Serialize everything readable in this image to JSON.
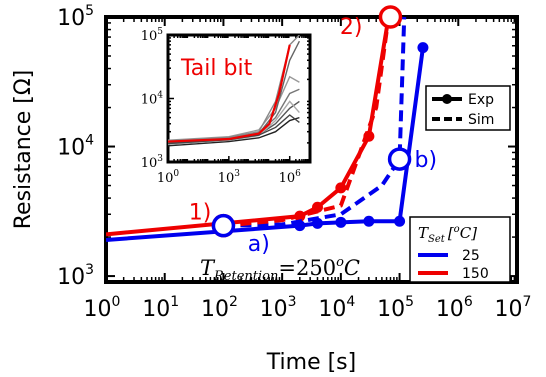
{
  "chart_data": [
    {
      "type": "line",
      "xlabel": "Time [s]",
      "ylabel": "Resistance [Ω]",
      "xscale": "log",
      "yscale": "log",
      "xlim": [
        1,
        10000000
      ],
      "ylim": [
        900,
        100000
      ],
      "x_ticks": [
        {
          "value": 1,
          "base": "10",
          "exp": "0"
        },
        {
          "value": 10,
          "base": "10",
          "exp": "1"
        },
        {
          "value": 100,
          "base": "10",
          "exp": "2"
        },
        {
          "value": 1000,
          "base": "10",
          "exp": "3"
        },
        {
          "value": 10000,
          "base": "10",
          "exp": "4"
        },
        {
          "value": 100000,
          "base": "10",
          "exp": "5"
        },
        {
          "value": 1000000,
          "base": "10",
          "exp": "6"
        },
        {
          "value": 10000000,
          "base": "10",
          "exp": "7"
        }
      ],
      "y_ticks": [
        {
          "value": 1000,
          "base": "10",
          "exp": "3"
        },
        {
          "value": 10000,
          "base": "10",
          "exp": "4"
        },
        {
          "value": 100000,
          "base": "10",
          "exp": "5"
        }
      ],
      "series": [
        {
          "name": "25",
          "kind": "exp",
          "color": "#0000ee",
          "x": [
            1,
            2000,
            4000,
            10000,
            30000,
            100000,
            250000
          ],
          "y": [
            1900,
            2450,
            2550,
            2600,
            2650,
            2650,
            58000
          ]
        },
        {
          "name": "150",
          "kind": "exp",
          "color": "#ee0000",
          "x": [
            1,
            2000,
            4000,
            10000,
            30000,
            65000
          ],
          "y": [
            2100,
            2900,
            3400,
            4800,
            12000,
            100000
          ]
        },
        {
          "name": "25",
          "kind": "sim",
          "color": "#0000ee",
          "x": [
            100,
            1000,
            10000,
            50000,
            100000,
            120000
          ],
          "y": [
            2450,
            2500,
            3000,
            5000,
            8000,
            100000
          ]
        },
        {
          "name": "150",
          "kind": "sim",
          "color": "#ee0000",
          "x": [
            100,
            1000,
            10000,
            40000,
            65000
          ],
          "y": [
            2450,
            2700,
            3500,
            20000,
            100000
          ]
        }
      ],
      "annotations": [
        {
          "label": "1)",
          "x": 100,
          "y": 2450,
          "color": "#ee0000",
          "label_x": 40,
          "label_y": 3150
        },
        {
          "label": "a)",
          "x": 100,
          "y": 2450,
          "color": "#0000ee",
          "label_x": 400,
          "label_y": 1800
        },
        {
          "label": "2)",
          "x": 70000,
          "y": 100000,
          "color": "#ee0000",
          "label_x": 15000,
          "label_y": 85000
        },
        {
          "label": "b)",
          "x": 100000,
          "y": 8000,
          "color": "#0000ee",
          "label_x": 280000,
          "label_y": 8000
        }
      ],
      "text_annotation": {
        "main": "T",
        "sub": "Retention",
        "rest": "=250",
        "sup": "o",
        "unit": "C"
      },
      "legend_style": {
        "placement": "right",
        "entries": [
          {
            "label": "Exp",
            "marker": "dot",
            "linestyle": "solid"
          },
          {
            "label": "Sim",
            "marker": "none",
            "linestyle": "dashed"
          }
        ]
      },
      "legend_temp": {
        "placement": "bottom-right",
        "title_main": "T",
        "title_sub": "Set",
        "title_unit_open": "[",
        "title_sup": "o",
        "title_unit_close": "C]",
        "entries": [
          {
            "label": "25",
            "color": "#0000ee"
          },
          {
            "label": "150",
            "color": "#ee0000"
          }
        ]
      }
    },
    {
      "type": "line",
      "title": "Tail bit",
      "title_color": "#ee0000",
      "xscale": "log",
      "yscale": "log",
      "xlim": [
        1,
        10000000
      ],
      "ylim": [
        1000,
        100000
      ],
      "x_ticks": [
        {
          "value": 1,
          "base": "10",
          "exp": "0"
        },
        {
          "value": 1000,
          "base": "10",
          "exp": "3"
        },
        {
          "value": 1000000,
          "base": "10",
          "exp": "6"
        }
      ],
      "y_ticks": [
        {
          "value": 1000,
          "base": "10",
          "exp": "3"
        },
        {
          "value": 10000,
          "base": "10",
          "exp": "4"
        },
        {
          "value": 100000,
          "base": "10",
          "exp": "5"
        }
      ],
      "series": [
        {
          "color": "#222222",
          "x": [
            1,
            1000,
            30000,
            200000,
            1000000,
            3000000
          ],
          "y": [
            1800,
            2100,
            2400,
            3000,
            4500,
            5000
          ]
        },
        {
          "color": "#555555",
          "x": [
            1,
            1000,
            30000,
            200000,
            1000000,
            3000000
          ],
          "y": [
            2000,
            2300,
            2700,
            4000,
            7000,
            9000
          ]
        },
        {
          "color": "#777777",
          "x": [
            1,
            1000,
            30000,
            200000,
            1000000,
            3000000
          ],
          "y": [
            2100,
            2400,
            2900,
            5000,
            12000,
            14000
          ]
        },
        {
          "color": "#999999",
          "x": [
            1,
            1000,
            30000,
            200000,
            1000000,
            3000000
          ],
          "y": [
            2200,
            2500,
            3200,
            7000,
            22000,
            18000
          ]
        },
        {
          "color": "#aaaaaa",
          "x": [
            1,
            1000,
            30000,
            200000,
            1000000,
            3000000
          ],
          "y": [
            1900,
            2200,
            2600,
            4500,
            9000,
            6000
          ]
        },
        {
          "color": "#666666",
          "x": [
            1,
            1000,
            30000,
            200000,
            1000000,
            3000000
          ],
          "y": [
            2000,
            2300,
            2800,
            6000,
            40000,
            80000
          ]
        },
        {
          "color": "#888888",
          "x": [
            1,
            1000,
            30000,
            200000,
            1000000,
            3000000
          ],
          "y": [
            2150,
            2450,
            3000,
            9000,
            70000,
            100000
          ]
        },
        {
          "color": "#444444",
          "x": [
            1,
            1000,
            30000,
            200000,
            1000000,
            3000000
          ],
          "y": [
            1950,
            2250,
            2650,
            3500,
            5500,
            4200
          ]
        },
        {
          "color": "#ee0000",
          "x": [
            1,
            1000,
            30000,
            100000,
            300000,
            1000000
          ],
          "y": [
            2100,
            2300,
            2800,
            4000,
            12000,
            70000
          ]
        }
      ]
    }
  ]
}
